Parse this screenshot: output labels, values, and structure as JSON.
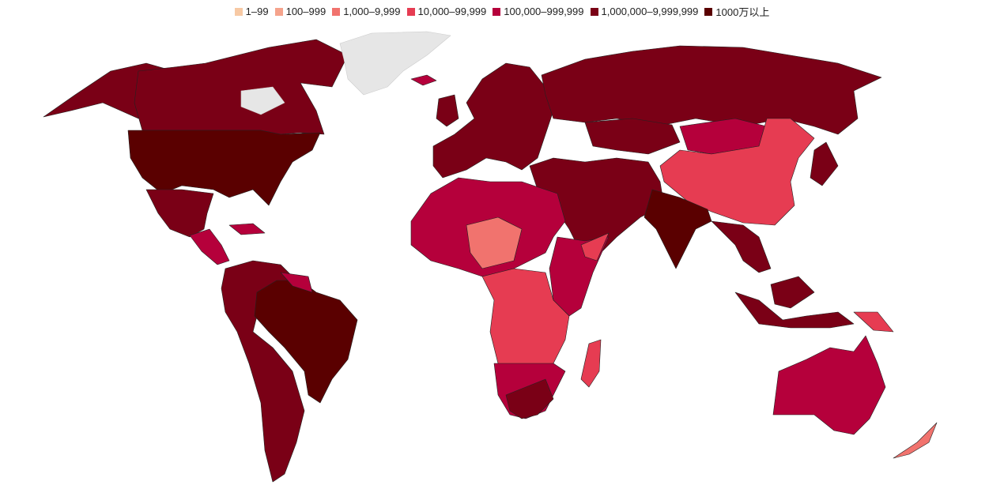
{
  "legend": {
    "items": [
      {
        "label": "1–99",
        "color": "#f7c9a4"
      },
      {
        "label": "100–999",
        "color": "#f5a38c"
      },
      {
        "label": "1,000–9,999",
        "color": "#f1736e"
      },
      {
        "label": "10,000–99,999",
        "color": "#e63c52"
      },
      {
        "label": "100,000–999,999",
        "color": "#b5003b"
      },
      {
        "label": "1,000,000–9,999,999",
        "color": "#7a0016"
      },
      {
        "label": "1000万以上",
        "color": "#5a0000"
      }
    ]
  }
}
